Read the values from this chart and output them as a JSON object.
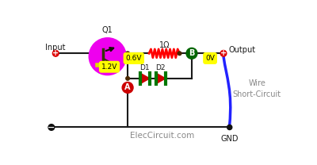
{
  "background_color": "#ffffff",
  "fig_width": 4.0,
  "fig_height": 2.08,
  "dpi": 100,
  "labels": {
    "input": "Input",
    "output": "Output",
    "q1": "Q1",
    "resistor": "1Ω",
    "d1": "D1",
    "d2": "D2",
    "v06": "0.6V",
    "v12": "1.2V",
    "v0": "0V",
    "point_a": "A",
    "point_b": "B",
    "gnd": "GND",
    "wire_short": "Wire\nShort-Circuit",
    "website": "ElecCircuit.com"
  },
  "colors": {
    "wire": "#1a1a1a",
    "resistor": "#ff0000",
    "transistor_circle": "#ee00ee",
    "transistor_inner": "#333300",
    "transistor_bar": "#cccc00",
    "diode_body": "#cc0000",
    "diode_bar": "#007700",
    "short_circuit_wire": "#2222ff",
    "yellow_label": "#ffff00",
    "node_dot": "#4a2800",
    "input_plus": "#dd0000",
    "output_plus": "#dd0000",
    "input_minus": "#111111",
    "point_a_circle": "#cc0000",
    "point_b_circle": "#006600",
    "gnd_dot": "#111111"
  }
}
